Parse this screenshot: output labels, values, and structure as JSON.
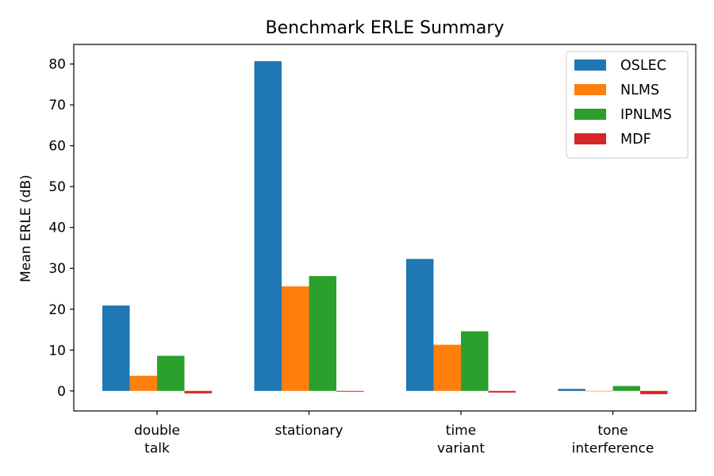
{
  "chart_data": {
    "type": "bar",
    "title": "Benchmark ERLE Summary",
    "xlabel": "",
    "ylabel": "Mean ERLE (dB)",
    "categories": [
      [
        "double",
        "talk"
      ],
      [
        "stationary"
      ],
      [
        "time",
        "variant"
      ],
      [
        "tone",
        "interference"
      ]
    ],
    "series": [
      {
        "name": "OSLEC",
        "color": "#1f77b4",
        "values": [
          20.9,
          80.7,
          32.3,
          0.5
        ]
      },
      {
        "name": "NLMS",
        "color": "#ff7f0e",
        "values": [
          3.7,
          25.6,
          11.3,
          0.0
        ]
      },
      {
        "name": "IPNLMS",
        "color": "#2ca02c",
        "values": [
          8.6,
          28.1,
          14.6,
          1.2
        ]
      },
      {
        "name": "MDF",
        "color": "#d62728",
        "values": [
          -0.6,
          -0.2,
          -0.4,
          -0.8
        ]
      }
    ],
    "ylim": [
      -4.9,
      84.8
    ],
    "yticks": [
      0,
      10,
      20,
      30,
      40,
      50,
      60,
      70,
      80
    ],
    "legend_position": "top-right",
    "grid": false
  }
}
